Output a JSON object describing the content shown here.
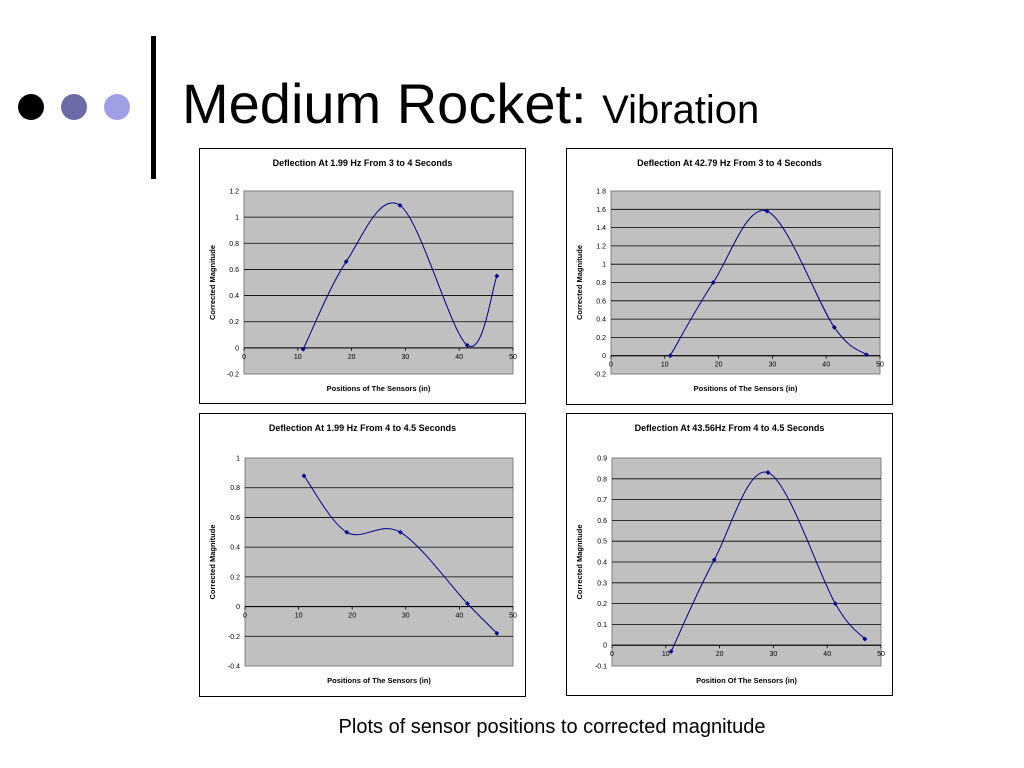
{
  "slide": {
    "title_main": "Medium Rocket:",
    "title_sub": "Vibration",
    "caption": "Plots of sensor positions to corrected magnitude",
    "bullet_colors": [
      "#000000",
      "#6b6ba8",
      "#9f9fe6"
    ]
  },
  "chart_data": [
    {
      "type": "line",
      "title": "Deflection At 1.99 Hz From 3 to 4 Seconds",
      "xlabel": "Positions of The Sensors (in)",
      "ylabel": "Corrected Magnitude",
      "xlim": [
        0,
        50
      ],
      "ylim": [
        -0.2,
        1.2
      ],
      "xticks": [
        0,
        10,
        20,
        30,
        40,
        50
      ],
      "yticks": [
        -0.2,
        0,
        0.2,
        0.4,
        0.6,
        0.8,
        1,
        1.2
      ],
      "ytick_labels": [
        "-0.2",
        "0",
        "0.2",
        "0.4",
        "0.6",
        "0.8",
        "1",
        "1.2"
      ],
      "x": [
        11,
        19,
        29,
        41.5,
        47
      ],
      "y": [
        -0.01,
        0.66,
        1.09,
        0.02,
        0.55
      ],
      "line_color": "#00008b",
      "plot_bg": "#c0c0c0",
      "grid": true
    },
    {
      "type": "line",
      "title": "Deflection At 42.79 Hz From 3 to 4 Seconds",
      "xlabel": "Positions of The Sensors (in)",
      "ylabel": "Corrected Magnitude",
      "xlim": [
        0,
        50
      ],
      "ylim": [
        -0.2,
        1.8
      ],
      "xticks": [
        0,
        10,
        20,
        30,
        40,
        50
      ],
      "yticks": [
        -0.2,
        0,
        0.2,
        0.4,
        0.6,
        0.8,
        1,
        1.2,
        1.4,
        1.6,
        1.8
      ],
      "ytick_labels": [
        "-0.2",
        "0",
        "0.2",
        "0.4",
        "0.6",
        "0.8",
        "1",
        "1.2",
        "1.4",
        "1.6",
        "1.8"
      ],
      "x": [
        11,
        19,
        29,
        41.5,
        47.5
      ],
      "y": [
        0,
        0.8,
        1.58,
        0.31,
        0.01
      ],
      "line_color": "#00008b",
      "plot_bg": "#c0c0c0",
      "grid": true
    },
    {
      "type": "line",
      "title": "Deflection At 1.99 Hz From 4 to 4.5 Seconds",
      "xlabel": "Positions of The Sensors (in)",
      "ylabel": "Corrected Magnitude",
      "xlim": [
        0,
        50
      ],
      "ylim": [
        -0.4,
        1
      ],
      "xticks": [
        0,
        10,
        20,
        30,
        40,
        50
      ],
      "yticks": [
        -0.4,
        -0.2,
        0,
        0.2,
        0.4,
        0.6,
        0.8,
        1
      ],
      "ytick_labels": [
        "-0.4",
        "-0.2",
        "0",
        "0.2",
        "0.4",
        "0.6",
        "0.8",
        "1"
      ],
      "x": [
        11,
        19,
        29,
        41.5,
        47
      ],
      "y": [
        0.88,
        0.5,
        0.5,
        0.02,
        -0.18
      ],
      "line_color": "#00008b",
      "plot_bg": "#c0c0c0",
      "grid": true
    },
    {
      "type": "line",
      "title": "Deflection At 43.56Hz From 4 to 4.5 Seconds",
      "xlabel": "Position Of The Sensors (in)",
      "ylabel": "Corrected Magnitude",
      "xlim": [
        0,
        50
      ],
      "ylim": [
        -0.1,
        0.9
      ],
      "xticks": [
        0,
        10,
        20,
        30,
        40,
        50
      ],
      "yticks": [
        -0.1,
        0,
        0.1,
        0.2,
        0.3,
        0.4,
        0.5,
        0.6,
        0.7,
        0.8,
        0.9
      ],
      "ytick_labels": [
        "-0.1",
        "0",
        "0.1",
        "0.2",
        "0.3",
        "0.4",
        "0.5",
        "0.6",
        "0.7",
        "0.8",
        "0.9"
      ],
      "x": [
        11,
        19,
        29,
        41.5,
        47
      ],
      "y": [
        -0.03,
        0.41,
        0.83,
        0.2,
        0.03
      ],
      "line_color": "#00008b",
      "plot_bg": "#c0c0c0",
      "grid": true
    }
  ]
}
